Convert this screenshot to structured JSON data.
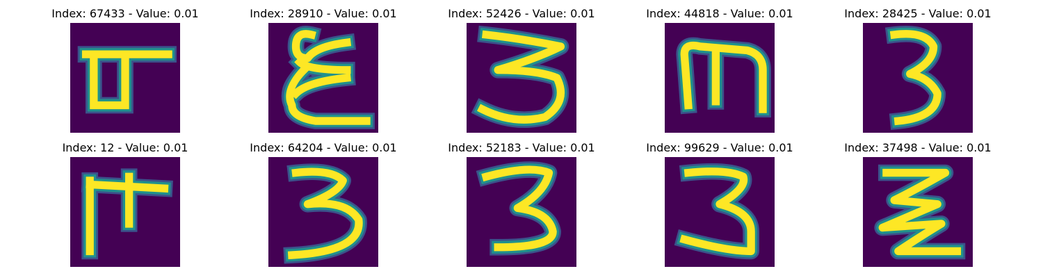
{
  "colors": {
    "background": "#440154",
    "stroke_core": "#fde725",
    "stroke_mid": "#21918c",
    "stroke_edge": "#3b528b"
  },
  "panels": [
    {
      "index": "67433",
      "value": "0.01",
      "title": "Index: 67433 - Value: 0.01",
      "glyph": "Ⴇ"
    },
    {
      "index": "28910",
      "value": "0.01",
      "title": "Index: 28910 - Value: 0.01",
      "glyph": "Ɛ"
    },
    {
      "index": "52426",
      "value": "0.01",
      "title": "Index: 52426 - Value: 0.01",
      "glyph": "3"
    },
    {
      "index": "44818",
      "value": "0.01",
      "title": "Index: 44818 - Value: 0.01",
      "glyph": "m"
    },
    {
      "index": "28425",
      "value": "0.01",
      "title": "Index: 28425 - Value: 0.01",
      "glyph": "3"
    },
    {
      "index": "12",
      "value": "0.01",
      "title": "Index: 12 - Value: 0.01",
      "glyph": "F"
    },
    {
      "index": "64204",
      "value": "0.01",
      "title": "Index: 64204 - Value: 0.01",
      "glyph": "3"
    },
    {
      "index": "52183",
      "value": "0.01",
      "title": "Index: 52183 - Value: 0.01",
      "glyph": "3"
    },
    {
      "index": "99629",
      "value": "0.01",
      "title": "Index: 99629 - Value: 0.01",
      "glyph": "3"
    },
    {
      "index": "37498",
      "value": "0.01",
      "title": "Index: 37498 - Value: 0.01",
      "glyph": "Ƶ"
    }
  ]
}
